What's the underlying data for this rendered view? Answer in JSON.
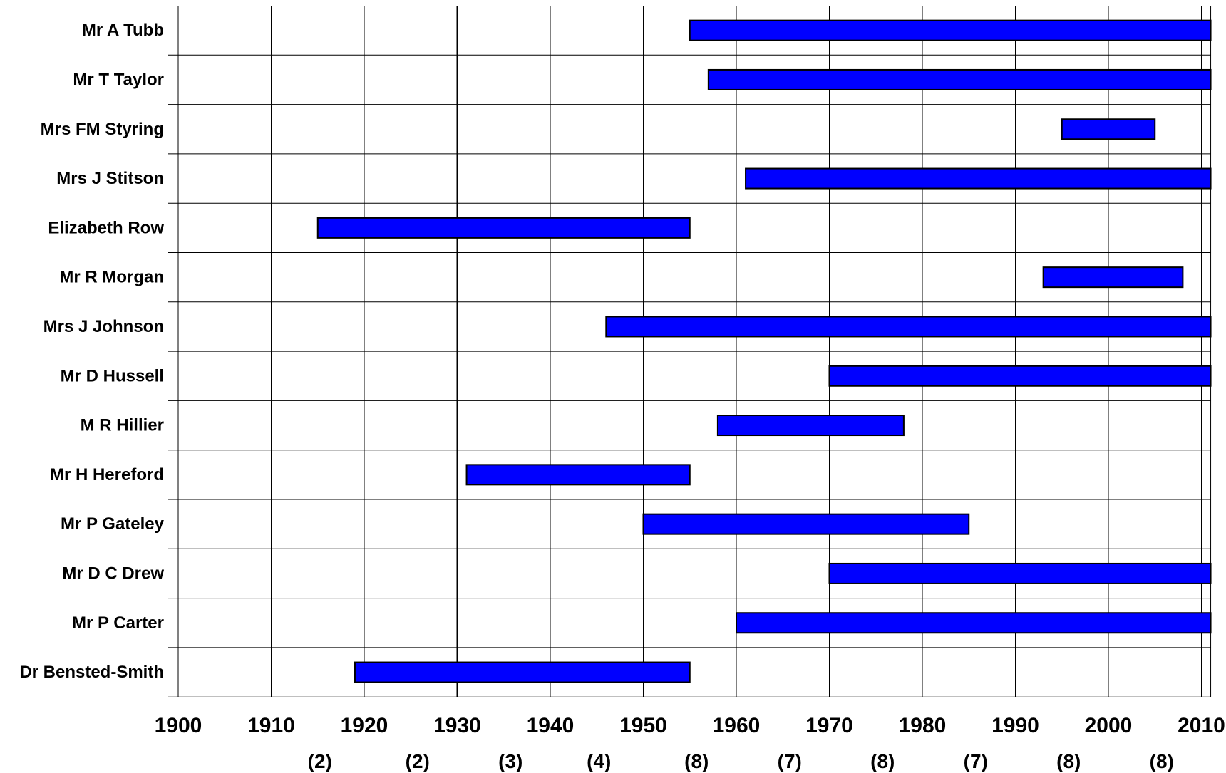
{
  "chart_data": {
    "type": "bar",
    "orientation": "horizontal",
    "title": "",
    "xlabel": "",
    "ylabel": "",
    "xlim": [
      1900,
      2011
    ],
    "x_ticks": [
      1900,
      1910,
      1920,
      1930,
      1940,
      1950,
      1960,
      1970,
      1980,
      1990,
      2000,
      2010
    ],
    "x_tick_labels": [
      "1900",
      "1910",
      "1920",
      "1930",
      "1940",
      "1950",
      "1960",
      "1970",
      "1980",
      "1990",
      "2000",
      "2010"
    ],
    "period_counts": [
      {
        "period": [
          1900,
          1930
        ],
        "label": "(2)",
        "center": 1915
      },
      {
        "period": [
          1920,
          1930
        ],
        "label": "(2)",
        "center": 1925.5
      },
      {
        "period": [
          1930,
          1940
        ],
        "label": "(3)",
        "center": 1935.5
      },
      {
        "period": [
          1940,
          1950
        ],
        "label": "(4)",
        "center": 1945
      },
      {
        "period": [
          1950,
          1960
        ],
        "label": "(8)",
        "center": 1955.5
      },
      {
        "period": [
          1960,
          1970
        ],
        "label": "(7)",
        "center": 1965.5
      },
      {
        "period": [
          1970,
          1980
        ],
        "label": "(8)",
        "center": 1975.5
      },
      {
        "period": [
          1980,
          1990
        ],
        "label": "(7)",
        "center": 1985.5
      },
      {
        "period": [
          1990,
          2000
        ],
        "label": "(8)",
        "center": 1995.5
      },
      {
        "period": [
          2000,
          2010
        ],
        "label": "(8)",
        "center": 2005.5
      }
    ],
    "emphasized_gridline": 1930,
    "grid": true,
    "bar_color": "#0000FF",
    "categories": [
      "Mr A Tubb",
      "Mr T Taylor",
      "Mrs FM Styring",
      "Mrs J Stitson",
      "Elizabeth Row",
      "Mr R Morgan",
      "Mrs J Johnson",
      "Mr D Hussell",
      "M R Hillier",
      "Mr H Hereford",
      "Mr P Gateley",
      "Mr D C Drew",
      "Mr P Carter",
      "Dr Bensted-Smith"
    ],
    "spans": [
      {
        "name": "Mr A Tubb",
        "start": 1955,
        "end": 2011
      },
      {
        "name": "Mr T Taylor",
        "start": 1957,
        "end": 2011
      },
      {
        "name": "Mrs FM Styring",
        "start": 1995,
        "end": 2005
      },
      {
        "name": "Mrs J Stitson",
        "start": 1961,
        "end": 2011
      },
      {
        "name": "Elizabeth Row",
        "start": 1915,
        "end": 1955
      },
      {
        "name": "Mr R Morgan",
        "start": 1993,
        "end": 2008
      },
      {
        "name": "Mrs J Johnson",
        "start": 1946,
        "end": 2011
      },
      {
        "name": "Mr D Hussell",
        "start": 1970,
        "end": 2011
      },
      {
        "name": "M R Hillier",
        "start": 1958,
        "end": 1978
      },
      {
        "name": "Mr H Hereford",
        "start": 1931,
        "end": 1955
      },
      {
        "name": "Mr P Gateley",
        "start": 1950,
        "end": 1985
      },
      {
        "name": "Mr D C Drew",
        "start": 1970,
        "end": 2011
      },
      {
        "name": "Mr P Carter",
        "start": 1960,
        "end": 2011
      },
      {
        "name": "Dr Bensted-Smith",
        "start": 1919,
        "end": 1955
      }
    ]
  }
}
